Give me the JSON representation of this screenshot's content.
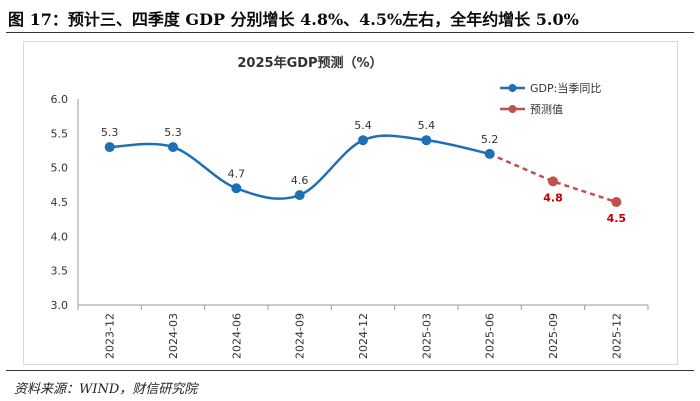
{
  "caption": "图 17：预计三、四季度 GDP 分别增长 4.8%、4.5%左右，全年约增长 5.0%",
  "source": "资料来源：WIND，财信研究院",
  "chart_data": {
    "type": "line",
    "title": "2025年GDP预测（%）",
    "categories": [
      "2023-12",
      "2024-03",
      "2024-06",
      "2024-09",
      "2024-12",
      "2025-03",
      "2025-06",
      "2025-09",
      "2025-12"
    ],
    "ylim": [
      3.0,
      6.0
    ],
    "yticks": [
      "6.0",
      "5.5",
      "5.0",
      "4.5",
      "4.0",
      "3.5",
      "3.0"
    ],
    "xlabel": "",
    "ylabel": "",
    "grid": false,
    "legend_position": "top-right",
    "series": [
      {
        "name": "GDP:当季同比",
        "color": "#1f6fb5",
        "style": "solid",
        "values": [
          5.3,
          5.3,
          4.7,
          4.6,
          5.4,
          5.4,
          5.2,
          null,
          null
        ],
        "labels": [
          "5.3",
          "5.3",
          "4.7",
          "4.6",
          "5.4",
          "5.4",
          "5.2",
          null,
          null
        ]
      },
      {
        "name": "预测值",
        "color": "#c0504d",
        "style": "dashed",
        "values": [
          null,
          null,
          null,
          null,
          null,
          null,
          5.2,
          4.8,
          4.5
        ],
        "labels": [
          null,
          null,
          null,
          null,
          null,
          null,
          null,
          "4.8",
          "4.5"
        ]
      }
    ]
  }
}
